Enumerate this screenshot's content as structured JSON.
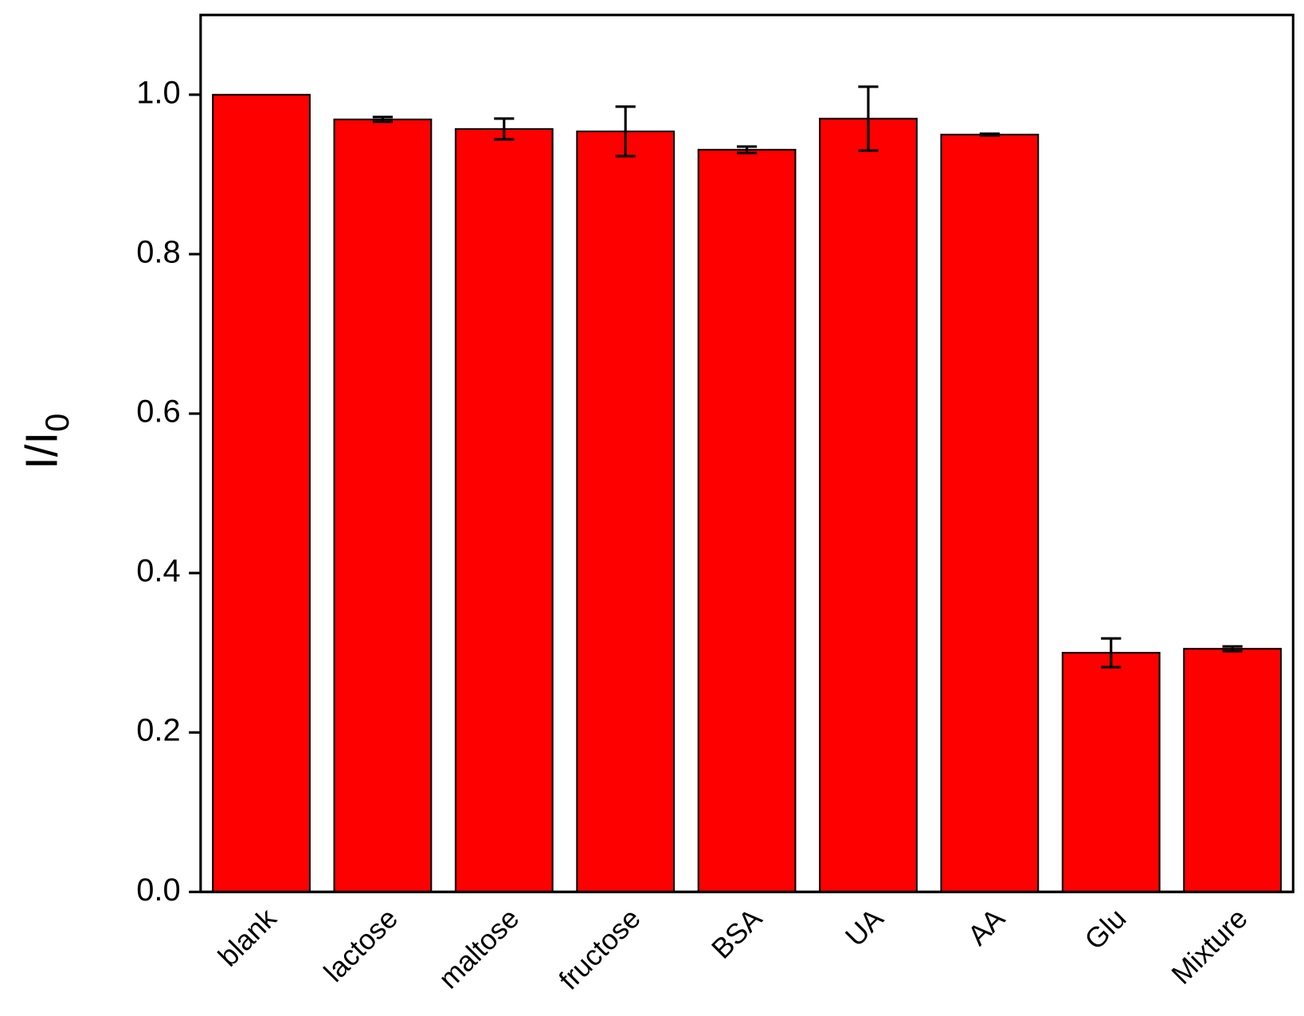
{
  "chart_data": {
    "type": "bar",
    "ylabel": "I/I",
    "ylabel_sub": "0",
    "categories": [
      "blank",
      "lactose",
      "maltose",
      "fructose",
      "BSA",
      "UA",
      "AA",
      "Glu",
      "Mixture"
    ],
    "values": [
      1.0,
      0.969,
      0.957,
      0.954,
      0.931,
      0.97,
      0.95,
      0.3,
      0.305
    ],
    "errors": [
      0,
      0.003,
      0.013,
      0.031,
      0.004,
      0.04,
      0.001,
      0.018,
      0.003
    ],
    "color": "#ff0000",
    "ylim": [
      0,
      1.1
    ],
    "yticks": [
      {
        "value": 0,
        "label": "0.0"
      },
      0.2,
      0.4,
      0.6,
      0.8,
      {
        "value": 1,
        "label": "1.0"
      }
    ]
  }
}
